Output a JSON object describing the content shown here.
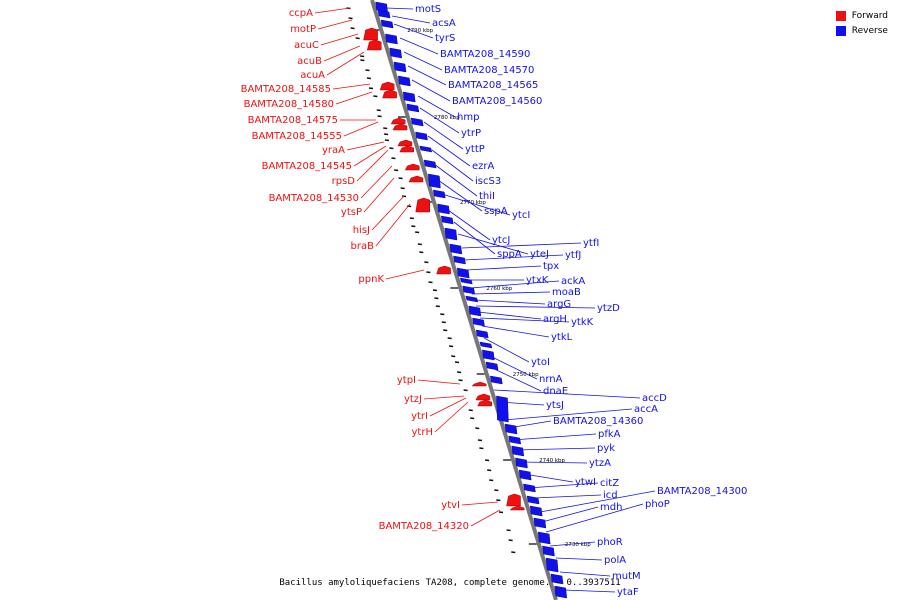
{
  "legend": {
    "forward_label": "Forward",
    "reverse_label": "Reverse",
    "forward_color": "#ee1111",
    "reverse_color": "#1111ee"
  },
  "footer": "Bacillus amyloliquefaciens TA208, complete genome. - 0..3937511",
  "position_markers": [
    "2790 kbp",
    "2780 kbp",
    "2770 kbp",
    "2760 kbp",
    "2750 kbp",
    "2740 kbp",
    "2730 kbp"
  ],
  "forward_genes": [
    "ccpA",
    "motP",
    "acuC",
    "acuB",
    "acuA",
    "BAMTA208_14585",
    "BAMTA208_14580",
    "BAMTA208_14575",
    "BAMTA208_14555",
    "yraA",
    "BAMTA208_14545",
    "rpsD",
    "BAMTA208_14530",
    "ytsP",
    "hisJ",
    "braB",
    "ppnK",
    "ytpI",
    "ytzJ",
    "ytrI",
    "ytrH",
    "ytvI",
    "BAMTA208_14320"
  ],
  "reverse_genes": [
    "motS",
    "acsA",
    "tyrS",
    "BAMTA208_14590",
    "BAMTA208_14570",
    "BAMTA208_14565",
    "BAMTA208_14560",
    "hmp",
    "ytrP",
    "yttP",
    "ezrA",
    "iscS3",
    "thiI",
    "sspA",
    "ytcI",
    "ytcJ",
    "sppA",
    "yteJ",
    "ytfI",
    "ytfJ",
    "tpx",
    "ytxK",
    "ackA",
    "moaB",
    "argG",
    "ytzD",
    "argH",
    "ytkK",
    "ytkL",
    "ytoI",
    "nrnA",
    "dnaE",
    "accD",
    "ytsJ",
    "accA",
    "BAMTA208_14360",
    "pfkA",
    "pyk",
    "ytzA",
    "ytwI",
    "citZ",
    "icd",
    "BAMTA208_14300",
    "mdh",
    "phoP",
    "phoR",
    "polA",
    "mutM",
    "ytaF"
  ]
}
